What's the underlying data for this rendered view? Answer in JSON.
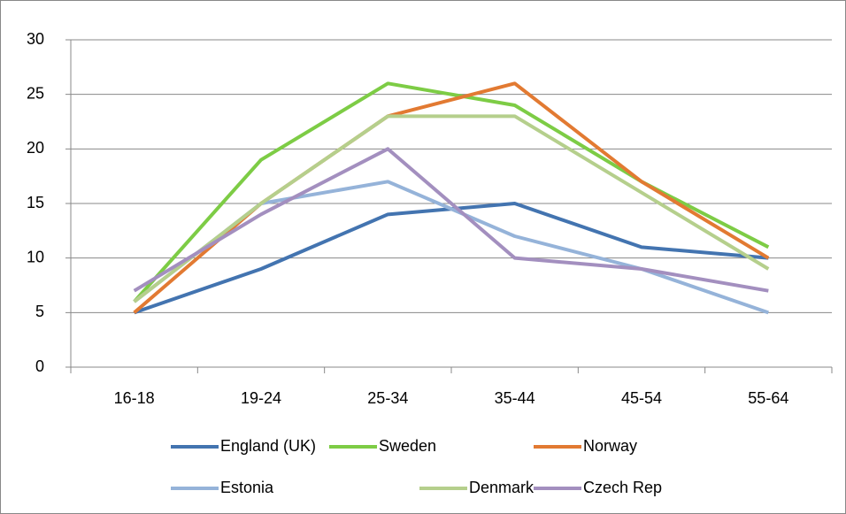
{
  "chart_data": {
    "type": "line",
    "categories": [
      "16-18",
      "19-24",
      "25-34",
      "35-44",
      "45-54",
      "55-64"
    ],
    "series": [
      {
        "name": "England (UK)",
        "color": "#4374b0",
        "values": [
          5,
          9,
          14,
          15,
          11,
          10
        ]
      },
      {
        "name": "Sweden",
        "color": "#7dcc45",
        "values": [
          6,
          19,
          26,
          24,
          17,
          11
        ]
      },
      {
        "name": "Norway",
        "color": "#e27a32",
        "values": [
          5,
          15,
          23,
          26,
          17,
          10
        ]
      },
      {
        "name": "Estonia",
        "color": "#95b3d9",
        "values": [
          6,
          15,
          17,
          12,
          9,
          5
        ]
      },
      {
        "name": "Denmark",
        "color": "#b5cf8c",
        "values": [
          6,
          15,
          23,
          23,
          16,
          9
        ]
      },
      {
        "name": "Czech Rep",
        "color": "#a38fbf",
        "values": [
          7,
          14,
          20,
          10,
          9,
          7
        ]
      }
    ],
    "ylim": [
      0,
      30
    ],
    "yticks": [
      0,
      5,
      10,
      15,
      20,
      25,
      30
    ],
    "grid": true,
    "legend": "bottom"
  }
}
